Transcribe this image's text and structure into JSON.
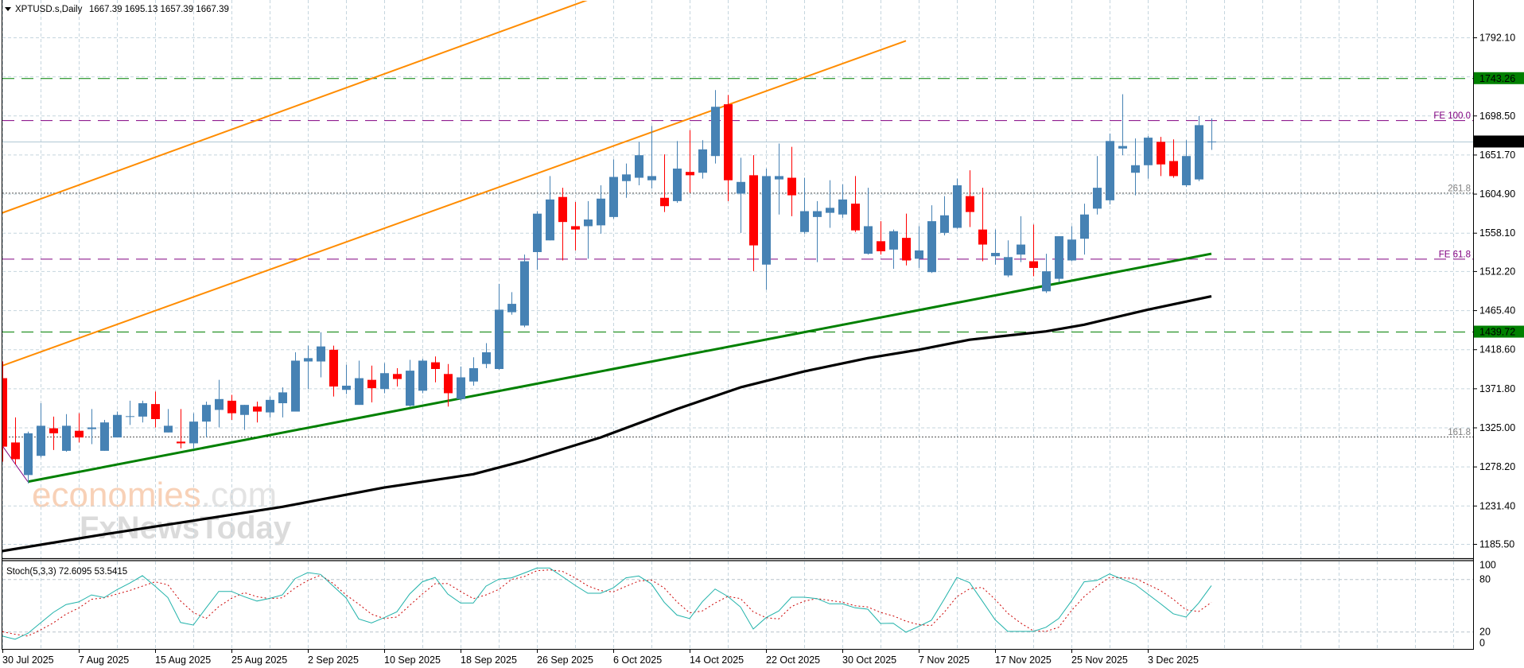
{
  "header": {
    "symbol_timeframe": "XPTUSD.s,Daily",
    "ohlc": "1667.39 1695.13 1657.39 1667.39"
  },
  "watermark": {
    "brand": "economies",
    "brand_suffix": ".com",
    "sub_brand": "FxNewsToday"
  },
  "colors": {
    "bull": "#4682B4",
    "bear": "#FF0000",
    "ma": "#000000",
    "trend_support": "#008000",
    "channel": "#FF8C00",
    "level_green": "#008000",
    "fibo": "#800080",
    "fibo_dotted": "#555555",
    "current_price": "#B0C8D4",
    "stoch_k": "#20B2AA",
    "stoch_d": "#CC0000",
    "grid": "#C5D5DE"
  },
  "chart_data": {
    "type": "candlestick",
    "title": "XPTUSD.s,Daily",
    "candle_fields": [
      "date",
      "open",
      "high",
      "low",
      "close"
    ],
    "candles": [
      [
        "2025-07-30",
        1384,
        1404,
        1284,
        1302
      ],
      [
        "2025-07-31",
        1307,
        1337,
        1281,
        1287
      ],
      [
        "2025-08-01",
        1268,
        1320,
        1258,
        1318
      ],
      [
        "2025-08-04",
        1291,
        1354,
        1289,
        1327
      ],
      [
        "2025-08-05",
        1324,
        1338,
        1298,
        1318
      ],
      [
        "2025-08-06",
        1297,
        1341,
        1296,
        1327
      ],
      [
        "2025-08-07",
        1321,
        1342,
        1307,
        1313
      ],
      [
        "2025-08-08",
        1323,
        1347,
        1305,
        1325
      ],
      [
        "2025-08-11",
        1297,
        1334,
        1297,
        1331
      ],
      [
        "2025-08-12",
        1313,
        1344,
        1313,
        1340
      ],
      [
        "2025-08-13",
        1338,
        1357,
        1328,
        1338.5
      ],
      [
        "2025-08-14",
        1338,
        1357,
        1331,
        1354
      ],
      [
        "2025-08-15",
        1353,
        1368,
        1325,
        1335
      ],
      [
        "2025-08-18",
        1319,
        1347,
        1319,
        1327
      ],
      [
        "2025-08-19",
        1308,
        1347,
        1300,
        1306
      ],
      [
        "2025-08-20",
        1306,
        1342,
        1299,
        1332
      ],
      [
        "2025-08-21",
        1332,
        1356,
        1313,
        1352
      ],
      [
        "2025-08-22",
        1346,
        1382,
        1325,
        1359
      ],
      [
        "2025-08-25",
        1357,
        1364,
        1334,
        1342
      ],
      [
        "2025-08-26",
        1340,
        1352,
        1322,
        1352
      ],
      [
        "2025-08-27",
        1350,
        1356,
        1331,
        1344
      ],
      [
        "2025-08-28",
        1343,
        1362,
        1337,
        1358
      ],
      [
        "2025-08-29",
        1354,
        1373,
        1337,
        1367
      ],
      [
        "2025-09-01",
        1344,
        1415,
        1344,
        1405
      ],
      [
        "2025-09-02",
        1404,
        1423,
        1371,
        1408
      ],
      [
        "2025-09-03",
        1404,
        1439,
        1385,
        1422
      ],
      [
        "2025-09-04",
        1418,
        1423,
        1362,
        1374
      ],
      [
        "2025-09-05",
        1370,
        1400,
        1365,
        1375
      ],
      [
        "2025-09-08",
        1352,
        1405,
        1352,
        1384
      ],
      [
        "2025-09-09",
        1382,
        1399,
        1355,
        1372
      ],
      [
        "2025-09-10",
        1371,
        1402,
        1366,
        1390
      ],
      [
        "2025-09-11",
        1389,
        1396,
        1374,
        1383
      ],
      [
        "2025-09-12",
        1351,
        1406,
        1350,
        1393
      ],
      [
        "2025-09-15",
        1369,
        1407,
        1366,
        1405
      ],
      [
        "2025-09-16",
        1403,
        1410,
        1379,
        1395
      ],
      [
        "2025-09-17",
        1389,
        1401,
        1350,
        1366
      ],
      [
        "2025-09-18",
        1359,
        1398,
        1357,
        1385
      ],
      [
        "2025-09-19",
        1380,
        1409,
        1375,
        1396
      ],
      [
        "2025-09-22",
        1401,
        1426,
        1396,
        1415
      ],
      [
        "2025-09-23",
        1395,
        1497,
        1394,
        1466
      ],
      [
        "2025-09-24",
        1463,
        1487,
        1460,
        1473
      ],
      [
        "2025-09-25",
        1447,
        1532,
        1445,
        1524
      ],
      [
        "2025-09-26",
        1535,
        1584,
        1514,
        1581
      ],
      [
        "2025-09-29",
        1549,
        1626,
        1549,
        1598
      ],
      [
        "2025-09-30",
        1601,
        1612,
        1525,
        1571
      ],
      [
        "2025-10-01",
        1566,
        1595,
        1537,
        1562
      ],
      [
        "2025-10-02",
        1566,
        1596,
        1527,
        1574
      ],
      [
        "2025-10-03",
        1567,
        1615,
        1557,
        1599
      ],
      [
        "2025-10-06",
        1577,
        1646,
        1575,
        1625
      ],
      [
        "2025-10-07",
        1620,
        1641,
        1600,
        1628
      ],
      [
        "2025-10-08",
        1624,
        1667,
        1615,
        1651
      ],
      [
        "2025-10-09",
        1621,
        1686,
        1611,
        1626
      ],
      [
        "2025-10-10",
        1600,
        1652,
        1583,
        1590
      ],
      [
        "2025-10-13",
        1596,
        1668,
        1594,
        1635
      ],
      [
        "2025-10-14",
        1631,
        1681,
        1606,
        1627
      ],
      [
        "2025-10-15",
        1630,
        1669,
        1623,
        1658
      ],
      [
        "2025-10-16",
        1650,
        1729,
        1641,
        1709
      ],
      [
        "2025-10-17",
        1712,
        1723,
        1596,
        1621
      ],
      [
        "2025-10-20",
        1605,
        1648,
        1558,
        1619
      ],
      [
        "2025-10-21",
        1627,
        1651,
        1512,
        1543
      ],
      [
        "2025-10-22",
        1520,
        1635,
        1490,
        1626
      ],
      [
        "2025-10-23",
        1622,
        1665,
        1580,
        1626
      ],
      [
        "2025-10-24",
        1624,
        1661,
        1578,
        1603
      ],
      [
        "2025-10-27",
        1559,
        1624,
        1557,
        1584
      ],
      [
        "2025-10-28",
        1577,
        1596,
        1523,
        1584
      ],
      [
        "2025-10-29",
        1582,
        1621,
        1564,
        1588
      ],
      [
        "2025-10-30",
        1580,
        1616,
        1576,
        1598
      ],
      [
        "2025-10-31",
        1593,
        1626,
        1559,
        1561
      ],
      [
        "2025-11-03",
        1533,
        1612,
        1532,
        1566
      ],
      [
        "2025-11-04",
        1548,
        1572,
        1532,
        1536
      ],
      [
        "2025-11-05",
        1538,
        1562,
        1515,
        1560
      ],
      [
        "2025-11-06",
        1552,
        1581,
        1519,
        1525
      ],
      [
        "2025-11-07",
        1527,
        1566,
        1516,
        1537
      ],
      [
        "2025-11-10",
        1511,
        1591,
        1510,
        1572
      ],
      [
        "2025-11-11",
        1558,
        1602,
        1555,
        1579
      ],
      [
        "2025-11-12",
        1564,
        1623,
        1563,
        1615
      ],
      [
        "2025-11-13",
        1602,
        1633,
        1565,
        1583
      ],
      [
        "2025-11-14",
        1562,
        1612,
        1524,
        1544
      ],
      [
        "2025-11-17",
        1530,
        1562,
        1520,
        1534
      ],
      [
        "2025-11-18",
        1507,
        1549,
        1505,
        1529
      ],
      [
        "2025-11-19",
        1532,
        1578,
        1523,
        1544
      ],
      [
        "2025-11-20",
        1524,
        1568,
        1506,
        1516
      ],
      [
        "2025-11-21",
        1488,
        1533,
        1486,
        1512
      ],
      [
        "2025-11-24",
        1503,
        1554,
        1499,
        1554
      ],
      [
        "2025-11-25",
        1525,
        1566,
        1524,
        1550
      ],
      [
        "2025-11-26",
        1551,
        1593,
        1532,
        1580
      ],
      [
        "2025-11-27",
        1587,
        1650,
        1580,
        1612
      ],
      [
        "2025-11-28",
        1597,
        1677,
        1592,
        1668
      ],
      [
        "2025-12-01",
        1659,
        1724,
        1651,
        1662
      ],
      [
        "2025-12-02",
        1630,
        1671,
        1603,
        1639
      ],
      [
        "2025-12-03",
        1639,
        1674,
        1623,
        1672
      ],
      [
        "2025-12-04",
        1667,
        1673,
        1626,
        1640
      ],
      [
        "2025-12-05",
        1644,
        1670,
        1624,
        1626
      ],
      [
        "2025-12-08",
        1615,
        1669,
        1613,
        1650
      ],
      [
        "2025-12-09",
        1622,
        1698,
        1620,
        1687
      ],
      [
        "2025-12-10",
        1667.39,
        1695.13,
        1657.39,
        1667.39
      ]
    ],
    "price_axis": {
      "ticks": [
        "1792.10",
        "1698.50",
        "1651.70",
        "1604.90",
        "1558.10",
        "1512.20",
        "1465.40",
        "1418.60",
        "1371.80",
        "1325.00",
        "1278.20",
        "1231.40",
        "1185.50"
      ],
      "ylim": [
        1150,
        1837
      ]
    },
    "time_axis": {
      "ticks": [
        {
          "date": "2025-07-30",
          "label": "30 Jul 2025"
        },
        {
          "date": "2025-08-07",
          "label": "7 Aug 2025"
        },
        {
          "date": "2025-08-15",
          "label": "15 Aug 2025"
        },
        {
          "date": "2025-08-25",
          "label": "25 Aug 2025"
        },
        {
          "date": "2025-09-02",
          "label": "2 Sep 2025"
        },
        {
          "date": "2025-09-10",
          "label": "10 Sep 2025"
        },
        {
          "date": "2025-09-18",
          "label": "18 Sep 2025"
        },
        {
          "date": "2025-09-26",
          "label": "26 Sep 2025"
        },
        {
          "date": "2025-10-06",
          "label": "6 Oct 2025"
        },
        {
          "date": "2025-10-14",
          "label": "14 Oct 2025"
        },
        {
          "date": "2025-10-22",
          "label": "22 Oct 2025"
        },
        {
          "date": "2025-10-30",
          "label": "30 Oct 2025"
        },
        {
          "date": "2025-11-07",
          "label": "7 Nov 2025"
        },
        {
          "date": "2025-11-17",
          "label": "17 Nov 2025"
        },
        {
          "date": "2025-11-25",
          "label": "25 Nov 2025"
        },
        {
          "date": "2025-12-03",
          "label": "3 Dec 2025"
        }
      ]
    },
    "price_labels": [
      {
        "value": 1743.26,
        "text": "1743.26",
        "style": "green"
      },
      {
        "value": 1667.39,
        "text": "1667.39",
        "style": "black"
      },
      {
        "value": 1439.72,
        "text": "1439.72",
        "style": "green"
      }
    ],
    "horizontal_lines": [
      {
        "value": 1743.26,
        "style": "green-dashed"
      },
      {
        "value": 1439.72,
        "style": "green-dashed"
      },
      {
        "value": 1667.39,
        "style": "current-price"
      }
    ],
    "fibo_expansion": {
      "anchor": [
        [
          "2025-07-30",
          1303
        ],
        [
          "2025-08-01",
          1260
        ]
      ],
      "levels": [
        {
          "value": 1693,
          "label": "FE 100.0",
          "style": "purple-dashed"
        },
        {
          "value": 1606,
          "label": "261.8",
          "style": "gray-dotted"
        },
        {
          "value": 1527,
          "label": "FE 61.8",
          "style": "purple-dashed"
        },
        {
          "value": 1314,
          "label": "161.8",
          "style": "gray-dotted"
        }
      ]
    },
    "trendlines": [
      {
        "name": "support",
        "color": "green",
        "points": [
          [
            "2025-08-01",
            1260
          ],
          [
            "2025-12-10",
            1533
          ]
        ]
      },
      {
        "name": "channel-upper",
        "color": "orange",
        "points": [
          [
            "2025-07-30",
            1582
          ],
          [
            "2025-10-02",
            1837
          ]
        ]
      },
      {
        "name": "channel-lower",
        "color": "orange",
        "points": [
          [
            "2025-07-30",
            1399
          ],
          [
            "2025-11-06",
            1788
          ]
        ]
      }
    ],
    "moving_average": [
      [
        "2025-07-30",
        1177
      ],
      [
        "2025-08-11",
        1197
      ],
      [
        "2025-08-19",
        1211
      ],
      [
        "2025-08-29",
        1230
      ],
      [
        "2025-09-10",
        1253
      ],
      [
        "2025-09-19",
        1269
      ],
      [
        "2025-09-25",
        1285
      ],
      [
        "2025-10-03",
        1313
      ],
      [
        "2025-10-13",
        1347
      ],
      [
        "2025-10-20",
        1373
      ],
      [
        "2025-10-27",
        1392
      ],
      [
        "2025-11-03",
        1408
      ],
      [
        "2025-11-07",
        1418
      ],
      [
        "2025-11-13",
        1430
      ],
      [
        "2025-11-21",
        1440
      ],
      [
        "2025-11-26",
        1448
      ],
      [
        "2025-12-03",
        1466
      ],
      [
        "2025-12-10",
        1482
      ]
    ],
    "stochastic": {
      "label": "Stoch(5,3,3) 72.6095 53.5415",
      "ylim": [
        0,
        100
      ],
      "ticks": [
        "100",
        "80",
        "20",
        "0"
      ],
      "levels": [
        80,
        20
      ],
      "k": [
        15,
        11.4,
        18,
        30,
        42,
        51,
        54,
        62,
        59,
        68,
        75.5,
        84,
        72,
        59,
        30.5,
        27.5,
        47,
        66,
        66,
        60,
        55,
        58,
        62,
        80.6,
        87.5,
        85.5,
        72,
        58.7,
        34.5,
        30,
        36,
        42.7,
        63,
        77,
        82,
        63,
        52.7,
        52.7,
        72,
        80,
        81.5,
        87,
        92.7,
        92.7,
        83,
        73,
        63.9,
        63.9,
        70,
        81.5,
        83.6,
        74.5,
        53.6,
        39,
        35,
        54.2,
        68.7,
        60.3,
        48.2,
        23,
        36,
        43.6,
        59.4,
        59.4,
        57.8,
        51.8,
        51.8,
        47.3,
        45.7,
        29.4,
        29.6,
        19.4,
        26,
        33,
        57,
        82,
        76,
        55,
        33.6,
        20.3,
        20.3,
        20.3,
        25,
        35,
        55,
        77,
        78.5,
        86,
        80,
        74,
        63,
        52,
        40.5,
        36.6,
        52.7,
        72.6
      ],
      "d": [
        20,
        17,
        15,
        22,
        30,
        40,
        47,
        57,
        58.7,
        63,
        67,
        72,
        77,
        73.6,
        55,
        42,
        35,
        48.6,
        58,
        64.6,
        60,
        57.7,
        58.7,
        70,
        78.5,
        84.6,
        75,
        62,
        51.5,
        40,
        35,
        36.7,
        50,
        63,
        74.8,
        75,
        66,
        57.7,
        62,
        68.3,
        79.6,
        83,
        89.6,
        90.6,
        89,
        81.5,
        72.4,
        66.9,
        65.5,
        71.8,
        77.8,
        79,
        70,
        54.2,
        41.5,
        43.6,
        52.7,
        60.3,
        57.8,
        42.7,
        36,
        34.5,
        48.7,
        54.8,
        57.8,
        55.7,
        53.6,
        49.6,
        48.2,
        42,
        38,
        32,
        28,
        27,
        42,
        60,
        69,
        70.6,
        57,
        41,
        30,
        21,
        20.3,
        25,
        44,
        60,
        72,
        82,
        81.5,
        81,
        74,
        67,
        57,
        45,
        43,
        53.5
      ]
    }
  }
}
